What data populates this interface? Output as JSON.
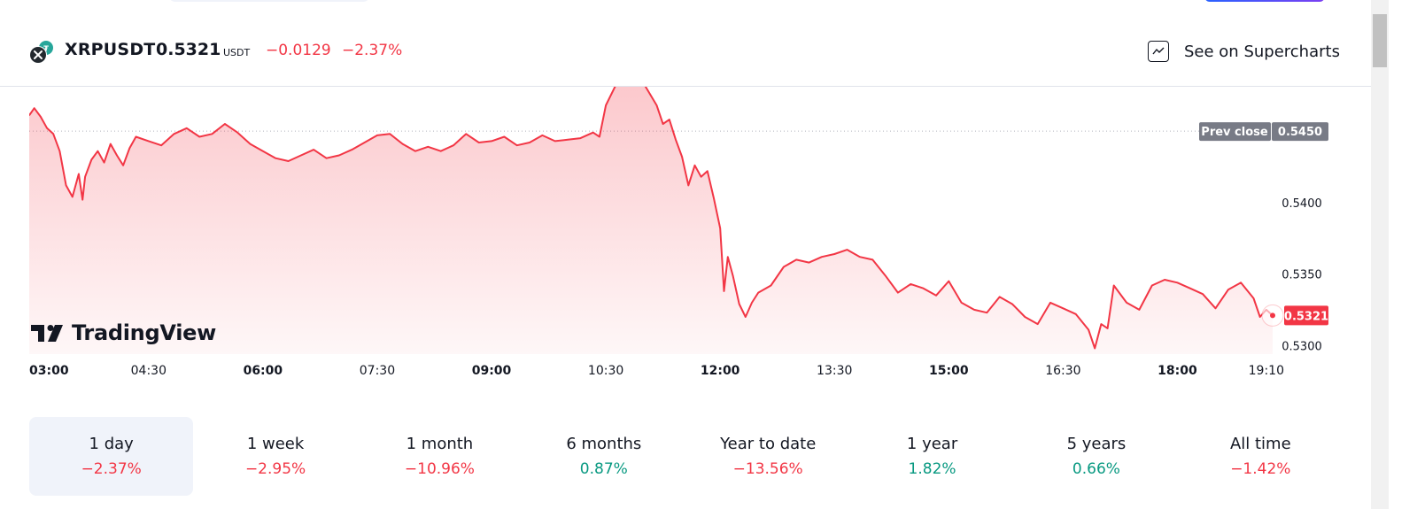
{
  "header": {
    "symbol": "XRPUSDT",
    "price": "0.5321",
    "unit": "USDT",
    "change": "−0.0129",
    "change_pct": "−2.37%",
    "supercharts_label": "See on Supercharts"
  },
  "logo": {
    "text": "TradingView"
  },
  "colors": {
    "line": "#f23645",
    "negative": "#f23645",
    "positive": "#089981",
    "prev_close_badge": "#787b86"
  },
  "chart_data": {
    "type": "area",
    "x_ticks": [
      "03:00",
      "04:30",
      "06:00",
      "07:30",
      "09:00",
      "10:30",
      "12:00",
      "13:30",
      "15:00",
      "16:30",
      "18:00",
      "19:10"
    ],
    "bold_ticks": [
      "03:00",
      "06:00",
      "09:00",
      "12:00",
      "15:00",
      "18:00"
    ],
    "y_ticks": [
      "0.5400",
      "0.5350",
      "0.5300"
    ],
    "ylim": [
      0.5294,
      0.5481
    ],
    "prev_close": {
      "label": "Prev close",
      "value": "0.5450"
    },
    "last_price": "0.5321",
    "series": [
      {
        "x": [
          "02:56",
          "03:00",
          "03:05",
          "03:10",
          "03:15",
          "03:20",
          "03:25",
          "03:30",
          "03:35",
          "03:38",
          "03:40",
          "03:45",
          "03:50",
          "03:55",
          "04:00",
          "04:05",
          "04:10",
          "04:15",
          "04:20",
          "04:30",
          "04:40",
          "04:50",
          "05:00",
          "05:10",
          "05:20",
          "05:30",
          "05:40",
          "05:50",
          "06:00",
          "06:10",
          "06:20",
          "06:30",
          "06:40",
          "06:50",
          "07:00",
          "07:10",
          "07:20",
          "07:30",
          "07:40",
          "07:50",
          "08:00",
          "08:10",
          "08:20",
          "08:30",
          "08:40",
          "08:50",
          "09:00",
          "09:10",
          "09:20",
          "09:30",
          "09:40",
          "09:50",
          "10:00",
          "10:10",
          "10:20",
          "10:25",
          "10:30",
          "10:40",
          "10:50",
          "11:00",
          "11:10",
          "11:15",
          "11:20",
          "11:25",
          "11:30",
          "11:35",
          "11:40",
          "11:45",
          "11:50",
          "11:55",
          "12:00",
          "12:03",
          "12:06",
          "12:10",
          "12:15",
          "12:20",
          "12:25",
          "12:30",
          "12:40",
          "12:50",
          "13:00",
          "13:10",
          "13:20",
          "13:30",
          "13:40",
          "13:50",
          "14:00",
          "14:10",
          "14:20",
          "14:30",
          "14:40",
          "14:50",
          "15:00",
          "15:10",
          "15:20",
          "15:30",
          "15:40",
          "15:50",
          "16:00",
          "16:10",
          "16:20",
          "16:30",
          "16:40",
          "16:50",
          "16:55",
          "17:00",
          "17:05",
          "17:10",
          "17:20",
          "17:30",
          "17:40",
          "17:50",
          "18:00",
          "18:10",
          "18:20",
          "18:30",
          "18:40",
          "18:50",
          "19:00",
          "19:05",
          "19:10",
          "19:15"
        ],
        "values": [
          0.5461,
          0.5466,
          0.546,
          0.5452,
          0.5448,
          0.5436,
          0.5412,
          0.5404,
          0.542,
          0.5402,
          0.5418,
          0.543,
          0.5436,
          0.5428,
          0.5441,
          0.5433,
          0.5426,
          0.5438,
          0.5446,
          0.5443,
          0.544,
          0.5448,
          0.5452,
          0.5446,
          0.5448,
          0.5455,
          0.5449,
          0.5441,
          0.5436,
          0.5431,
          0.5429,
          0.5433,
          0.5437,
          0.5431,
          0.5433,
          0.5437,
          0.5442,
          0.5447,
          0.5448,
          0.5441,
          0.5436,
          0.5439,
          0.5436,
          0.544,
          0.5448,
          0.5442,
          0.5443,
          0.5446,
          0.544,
          0.5442,
          0.5447,
          0.5443,
          0.5444,
          0.5445,
          0.5449,
          0.5446,
          0.5468,
          0.5486,
          0.5489,
          0.5483,
          0.5468,
          0.5455,
          0.5458,
          0.5444,
          0.5432,
          0.5412,
          0.5426,
          0.5418,
          0.5422,
          0.5403,
          0.5382,
          0.5338,
          0.5362,
          0.5349,
          0.5329,
          0.532,
          0.533,
          0.5337,
          0.5342,
          0.5355,
          0.536,
          0.5358,
          0.5362,
          0.5364,
          0.5367,
          0.5362,
          0.536,
          0.5349,
          0.5337,
          0.5343,
          0.534,
          0.5335,
          0.5345,
          0.533,
          0.5325,
          0.5323,
          0.5334,
          0.5329,
          0.532,
          0.5315,
          0.533,
          0.5326,
          0.5322,
          0.5311,
          0.5298,
          0.5315,
          0.5312,
          0.5342,
          0.533,
          0.5325,
          0.5342,
          0.5346,
          0.5344,
          0.534,
          0.5336,
          0.5326,
          0.5339,
          0.5344,
          0.5333,
          0.532,
          0.5325,
          0.5321
        ]
      }
    ]
  },
  "ranges": [
    {
      "label": "1 day",
      "value": "−2.37%",
      "trend": "neg",
      "active": true
    },
    {
      "label": "1 week",
      "value": "−2.95%",
      "trend": "neg",
      "active": false
    },
    {
      "label": "1 month",
      "value": "−10.96%",
      "trend": "neg",
      "active": false
    },
    {
      "label": "6 months",
      "value": "0.87%",
      "trend": "pos",
      "active": false
    },
    {
      "label": "Year to date",
      "value": "−13.56%",
      "trend": "neg",
      "active": false
    },
    {
      "label": "1 year",
      "value": "1.82%",
      "trend": "pos",
      "active": false
    },
    {
      "label": "5 years",
      "value": "0.66%",
      "trend": "pos",
      "active": false
    },
    {
      "label": "All time",
      "value": "−1.42%",
      "trend": "neg",
      "active": false
    }
  ]
}
